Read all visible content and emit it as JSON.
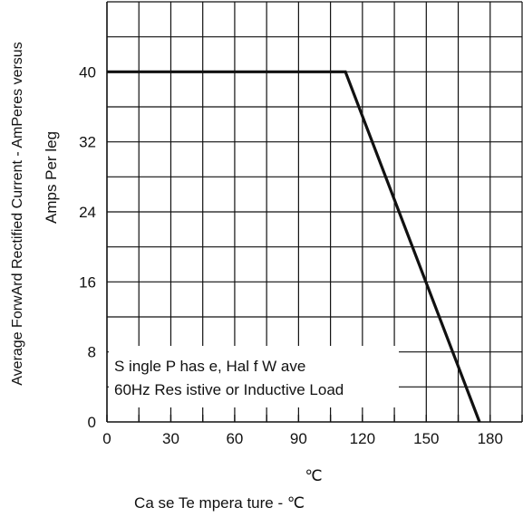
{
  "chart_data": {
    "type": "line",
    "title": "",
    "xlabel": "Ca se Te mpera ture  -  ℃",
    "x_unit": "℃",
    "ylabel": "Average ForwArd Rectified Current  -  AmPeres versus",
    "ylabel_secondary": "Amps      Per leg",
    "xlim": [
      0,
      180
    ],
    "ylim": [
      0,
      40
    ],
    "x_ticks": [
      "0",
      "30",
      "60",
      "90",
      "120",
      "150",
      "180"
    ],
    "y_ticks": [
      "0",
      "8",
      "16",
      "24",
      "32",
      "40"
    ],
    "grid": true,
    "series": [
      {
        "x": [
          0,
          112,
          175
        ],
        "y": [
          40,
          40,
          0
        ]
      }
    ],
    "annotations": [
      "S ingle  P has e,  Hal f W ave",
      "60Hz  Res istive or Inductive Load"
    ]
  }
}
